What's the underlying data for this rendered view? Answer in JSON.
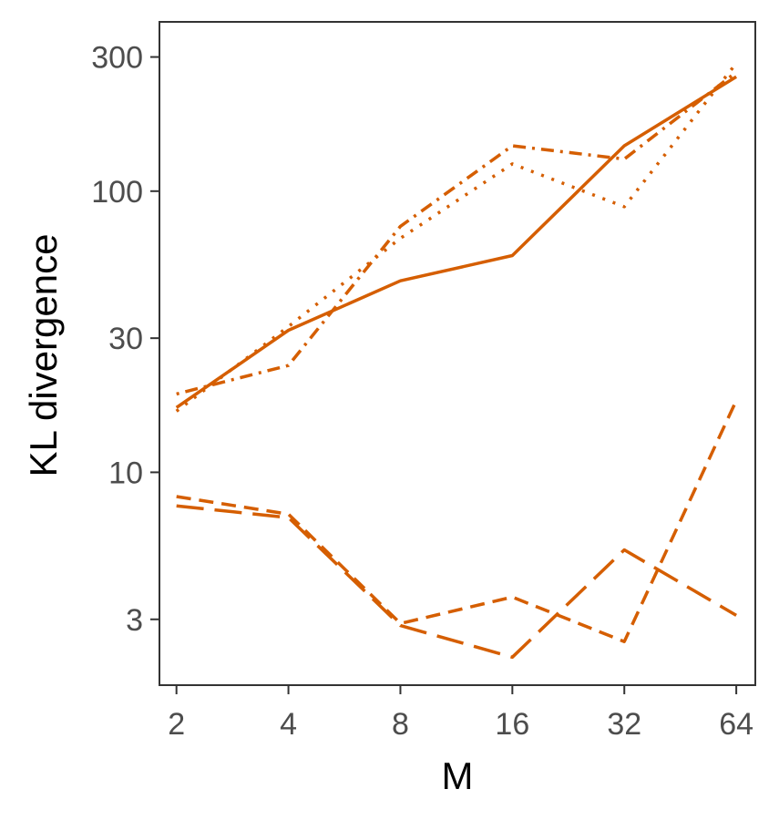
{
  "chart_data": {
    "type": "line",
    "title": "",
    "xlabel": "M",
    "ylabel": "KL divergence",
    "x_scale": "log2",
    "y_scale": "log10",
    "x": [
      2,
      4,
      8,
      16,
      32,
      64
    ],
    "x_tick_labels": [
      "2",
      "4",
      "8",
      "16",
      "32",
      "64"
    ],
    "y_ticks": [
      3,
      10,
      30,
      100,
      300
    ],
    "y_tick_labels": [
      "3",
      "10",
      "30",
      "100",
      "300"
    ],
    "xlim": [
      1.8,
      72
    ],
    "ylim": [
      1.75,
      400
    ],
    "grid": false,
    "legend": "none",
    "color": "#d55e00",
    "series": [
      {
        "style": "solid",
        "values": [
          17,
          32,
          48,
          59,
          145,
          255
        ]
      },
      {
        "style": "dotted",
        "values": [
          16.5,
          33,
          68,
          125,
          88,
          285
        ]
      },
      {
        "style": "dot-dash",
        "values": [
          19,
          24,
          75,
          145,
          130,
          265
        ]
      },
      {
        "style": "dashed",
        "values": [
          8.2,
          7.1,
          2.9,
          3.6,
          2.5,
          18
        ]
      },
      {
        "style": "long-dash",
        "values": [
          7.6,
          6.9,
          2.85,
          2.2,
          5.3,
          3.1
        ]
      }
    ]
  }
}
